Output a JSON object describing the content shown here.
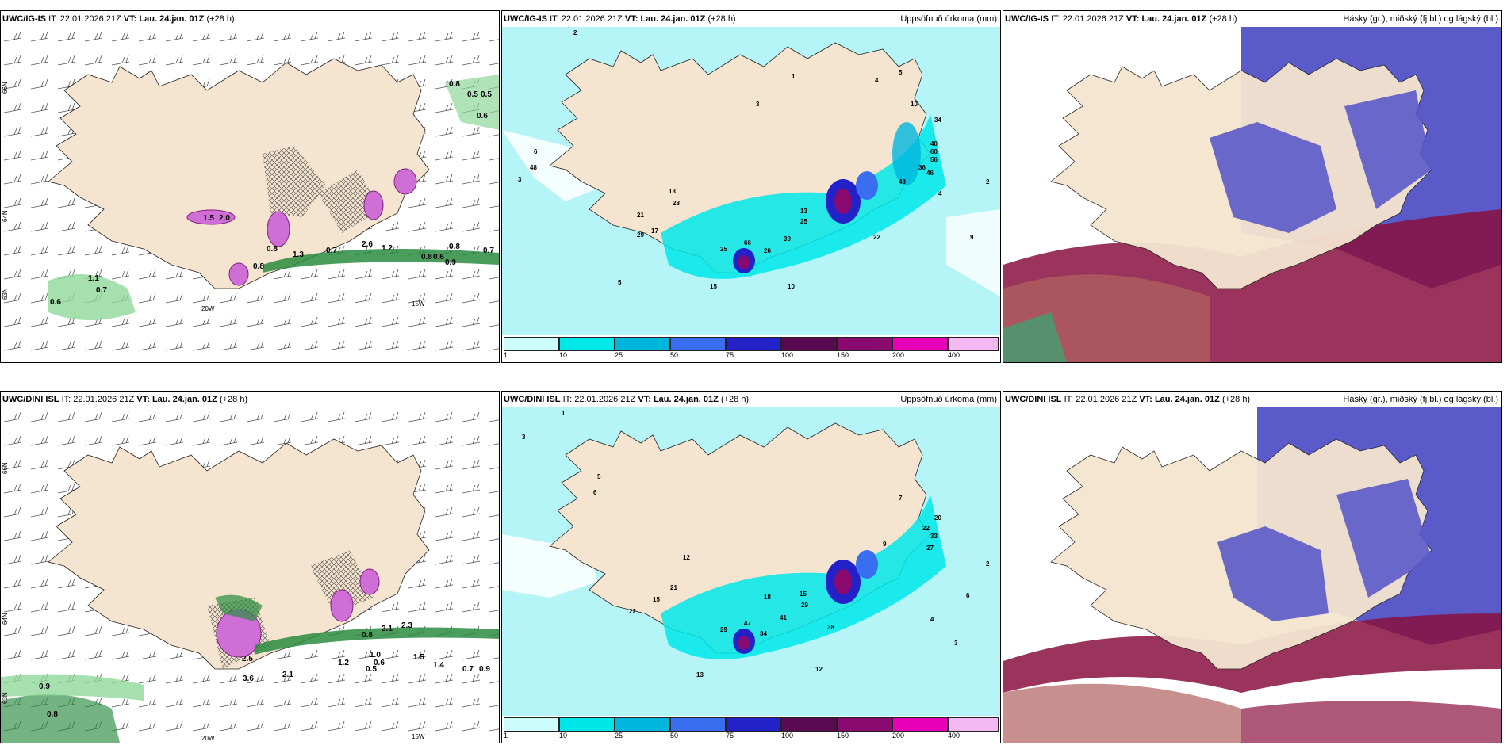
{
  "rows": [
    {
      "model": "UWC/IG-IS",
      "it_label": "IT:",
      "it_value": "22.01.2026 21Z",
      "vt_label": "VT:",
      "vt_value": "Lau. 24.jan. 01Z",
      "lead": "(+28 h)",
      "mid_title": "Uppsöfnuð úrkoma (mm)",
      "right_title": "Hásky (gr.), miðský (fj.bl.) og lágský (bl.)",
      "left_values": [
        "0.8",
        "0.5",
        "0.5",
        "0.6",
        "1.5",
        "2.0",
        "0.8",
        "1.3",
        "0.7",
        "2.6",
        "1.2",
        "0.8",
        "0.7",
        "0.8",
        "0.6",
        "0.9",
        "1.1",
        "0.7",
        "0.6",
        "0.8"
      ],
      "lon_labels": [
        "20W",
        "15W"
      ],
      "lat_labels": [
        "66N",
        "64N",
        "63N",
        "65N"
      ],
      "mid_values": [
        "2",
        "1",
        "3",
        "4",
        "5",
        "10",
        "48",
        "6",
        "13",
        "28",
        "21",
        "29",
        "17",
        "25",
        "66",
        "15",
        "26",
        "39",
        "13",
        "25",
        "22",
        "10",
        "5",
        "4",
        "3",
        "40",
        "34",
        "36",
        "60",
        "56",
        "46",
        "43",
        "2",
        "9"
      ]
    },
    {
      "model": "UWC/DINI ISL",
      "it_label": "IT:",
      "it_value": "22.01.2026 21Z",
      "vt_label": "VT:",
      "vt_value": "Lau. 24.jan. 01Z",
      "lead": "(+28 h)",
      "mid_title": "Uppsöfnuð úrkoma (mm)",
      "right_title": "Hásky (gr.), miðský (fj.bl.) og lágský (bl.)",
      "left_values": [
        "3.6",
        "2.5",
        "2.1",
        "1.2",
        "1.0",
        "0.6",
        "0.5",
        "1.5",
        "1.4",
        "0.7",
        "0.9",
        "0.8",
        "2.1",
        "2.3",
        "0.9",
        "0.8"
      ],
      "lon_labels": [
        "20W",
        "15W"
      ],
      "lat_labels": [
        "66N",
        "64N",
        "63N",
        "65N"
      ],
      "mid_values": [
        "1",
        "3",
        "5",
        "6",
        "12",
        "21",
        "15",
        "22",
        "29",
        "47",
        "34",
        "41",
        "18",
        "15",
        "29",
        "38",
        "12",
        "13",
        "9",
        "22",
        "33",
        "27",
        "20",
        "6",
        "4",
        "3",
        "2",
        "7"
      ]
    }
  ],
  "colorbar": {
    "ticks": [
      "1",
      "10",
      "25",
      "50",
      "75",
      "100",
      "150",
      "200",
      "400"
    ],
    "colors": [
      "#ccfcfc",
      "#00e7ea",
      "#00b6dd",
      "#3a6ef0",
      "#2222c8",
      "#5a0a50",
      "#8a0a70",
      "#e800b8",
      "#f2b8f2"
    ]
  },
  "colors": {
    "land": "#f5e5d0",
    "wind": "#555555",
    "sea_precip": "#b6f5f7",
    "high_cloud": "#a3a3a3",
    "mid_cloud": "#5a5ac8",
    "low_cloud": "#8a1040"
  }
}
